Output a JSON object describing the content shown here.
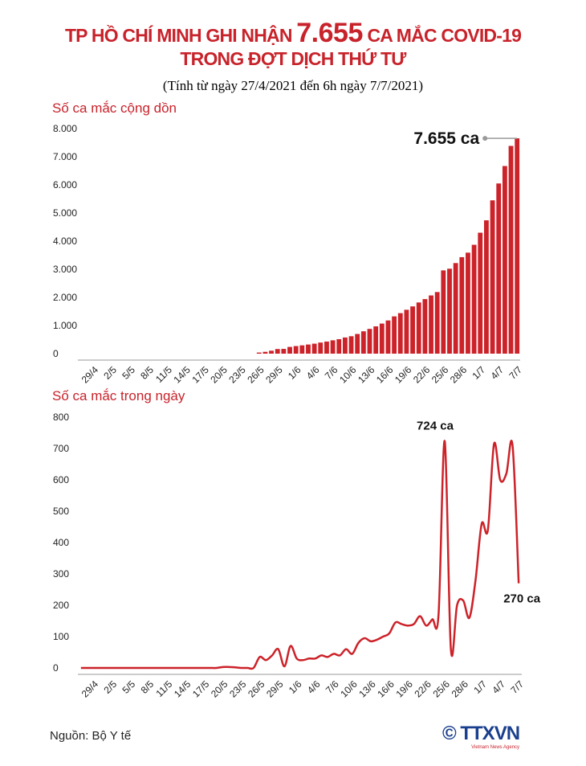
{
  "header": {
    "title_parts": [
      "TP HỒ CHÍ MINH GHI NHẬN",
      "7.655",
      "CA MẮC COVID-19",
      "TRONG ĐỢT DỊCH THỨ TƯ"
    ],
    "subtitle": "(Tính từ ngày 27/4/2021 đến 6h ngày 7/7/2021)"
  },
  "chart_data": [
    {
      "type": "bar",
      "title": "Số ca mắc cộng dồn",
      "color": "#cc2229",
      "categories": [
        null,
        null,
        "29/4",
        null,
        null,
        "2/5",
        null,
        null,
        "5/5",
        null,
        null,
        "8/5",
        null,
        null,
        "11/5",
        null,
        null,
        "14/5",
        null,
        null,
        "17/5",
        null,
        null,
        "20/5",
        null,
        null,
        "23/5",
        null,
        null,
        "26/5",
        null,
        null,
        "29/5",
        null,
        null,
        "1/6",
        null,
        null,
        "4/6",
        null,
        null,
        "7/6",
        null,
        null,
        "10/6",
        null,
        null,
        "13/6",
        null,
        null,
        "16/6",
        null,
        null,
        "19/6",
        null,
        null,
        "22/6",
        null,
        null,
        "25/6",
        null,
        null,
        "28/6",
        null,
        null,
        "1/7",
        null,
        null,
        "4/7",
        null,
        null,
        "7/7"
      ],
      "values": [
        0,
        0,
        0,
        0,
        0,
        0,
        0,
        0,
        0,
        0,
        0,
        0,
        0,
        0,
        0,
        0,
        0,
        0,
        0,
        0,
        0,
        0,
        0,
        0,
        0,
        0,
        0,
        0,
        0,
        40,
        65,
        105,
        165,
        170,
        240,
        270,
        295,
        325,
        355,
        395,
        430,
        475,
        515,
        575,
        620,
        700,
        795,
        880,
        970,
        1070,
        1180,
        1325,
        1440,
        1560,
        1680,
        1820,
        1940,
        2070,
        2190,
        2960,
        3020,
        3220,
        3430,
        3590,
        3870,
        4300,
        4740,
        5450,
        6050,
        6670,
        7385,
        7655
      ],
      "value_labels": [
        null,
        null,
        null,
        null,
        null,
        null,
        null,
        null,
        null,
        null,
        null,
        null,
        null,
        null,
        null,
        null,
        null,
        null,
        null,
        null,
        null,
        null,
        null,
        null,
        null,
        null,
        null,
        null,
        null,
        null,
        null,
        null,
        null,
        null,
        null,
        null,
        null,
        null,
        null,
        null,
        null,
        null,
        null,
        null,
        null,
        null,
        null,
        null,
        null,
        null,
        null,
        null,
        null,
        null,
        null,
        null,
        null,
        null,
        null,
        null,
        null,
        null,
        null,
        null,
        null,
        null,
        null,
        null,
        null,
        null,
        null,
        "7.655 ca"
      ],
      "ylim": [
        0,
        8000
      ],
      "yticks": [
        0,
        {
          "value": 1000,
          "label": "1.000"
        },
        {
          "value": 2000,
          "label": "2.000"
        },
        {
          "value": 3000,
          "label": "3.000"
        },
        {
          "value": 4000,
          "label": "4.000"
        },
        {
          "value": 5000,
          "label": "5.000"
        },
        {
          "value": 6000,
          "label": "6.000"
        },
        {
          "value": 7000,
          "label": "7.000"
        },
        {
          "value": 8000,
          "label": "8.000"
        }
      ],
      "grid": false
    },
    {
      "type": "line",
      "title": "Số ca mắc trong ngày",
      "color": "#cc2229",
      "categories": [
        null,
        null,
        "29/4",
        null,
        null,
        "2/5",
        null,
        null,
        "5/5",
        null,
        null,
        "8/5",
        null,
        null,
        "11/5",
        null,
        null,
        "14/5",
        null,
        null,
        "17/5",
        null,
        null,
        "20/5",
        null,
        null,
        "23/5",
        null,
        null,
        "26/5",
        null,
        null,
        "29/5",
        null,
        null,
        "1/6",
        null,
        null,
        "4/6",
        null,
        null,
        "7/6",
        null,
        null,
        "10/6",
        null,
        null,
        "13/6",
        null,
        null,
        "16/6",
        null,
        null,
        "19/6",
        null,
        null,
        "22/6",
        null,
        null,
        "25/6",
        null,
        null,
        "28/6",
        null,
        null,
        "1/7",
        null,
        null,
        "4/7",
        null,
        null,
        "7/7"
      ],
      "values": [
        0,
        0,
        0,
        0,
        0,
        0,
        0,
        0,
        0,
        0,
        0,
        0,
        0,
        0,
        0,
        0,
        0,
        0,
        0,
        0,
        0,
        0,
        0,
        3,
        3,
        2,
        0,
        0,
        0,
        35,
        25,
        40,
        60,
        5,
        70,
        30,
        25,
        30,
        30,
        40,
        35,
        45,
        40,
        60,
        45,
        80,
        95,
        85,
        90,
        100,
        110,
        145,
        140,
        135,
        140,
        165,
        135,
        155,
        170,
        724,
        60,
        200,
        215,
        160,
        280,
        460,
        440,
        715,
        600,
        620,
        710,
        270
      ],
      "value_labels": [
        null,
        null,
        null,
        null,
        null,
        null,
        null,
        null,
        null,
        null,
        null,
        null,
        null,
        null,
        null,
        null,
        null,
        null,
        null,
        null,
        null,
        null,
        null,
        null,
        null,
        null,
        null,
        null,
        null,
        null,
        null,
        null,
        null,
        null,
        null,
        null,
        null,
        null,
        null,
        null,
        null,
        null,
        null,
        null,
        null,
        null,
        null,
        null,
        null,
        null,
        null,
        null,
        null,
        null,
        null,
        null,
        null,
        null,
        null,
        "724 ca",
        null,
        null,
        null,
        null,
        null,
        null,
        null,
        null,
        null,
        null,
        null,
        "270 ca"
      ],
      "ylim": [
        0,
        800
      ],
      "yticks": [
        0,
        100,
        200,
        300,
        400,
        500,
        600,
        700,
        800
      ],
      "grid": false
    }
  ],
  "footer": {
    "source": "Nguồn: Bộ Y tế",
    "logo": "TTXVN",
    "logo_caption": "Vietnam News Agency"
  }
}
